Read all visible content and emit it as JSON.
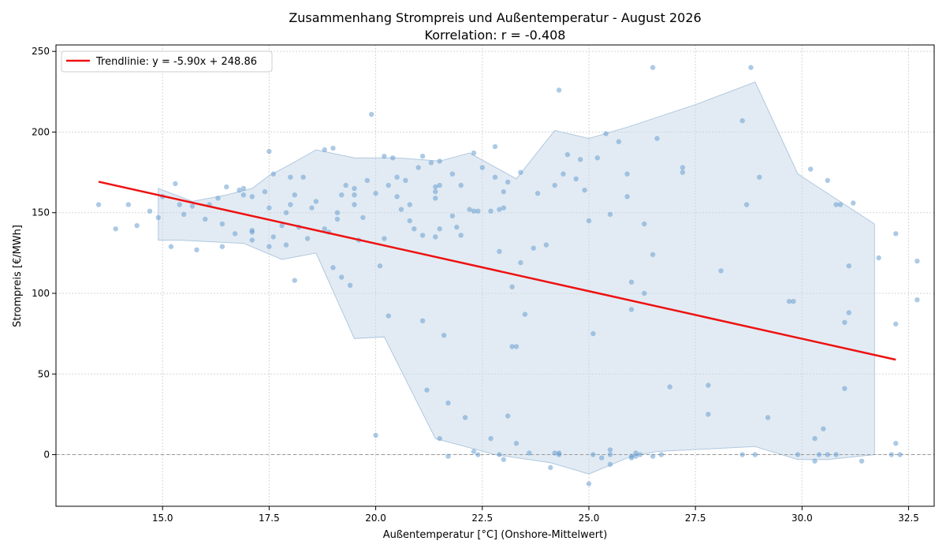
{
  "chart_data": {
    "type": "scatter",
    "title": "Zusammenhang Strompreis und Außentemperatur - August 2026",
    "subtitle": "Korrelation: r = -0.408",
    "xlabel": "Außentemperatur [°C] (Onshore-Mittelwert)",
    "ylabel": "Strompreis [€/MWh]",
    "xlim": [
      12.5,
      33.1
    ],
    "ylim": [
      -32,
      254
    ],
    "xticks": [
      15.0,
      17.5,
      20.0,
      22.5,
      25.0,
      27.5,
      30.0,
      32.5
    ],
    "yticks": [
      0,
      50,
      100,
      150,
      200,
      250
    ],
    "xtick_labels": [
      "15.0",
      "17.5",
      "20.0",
      "22.5",
      "25.0",
      "27.5",
      "30.0",
      "32.5"
    ],
    "ytick_labels": [
      "0",
      "50",
      "100",
      "150",
      "200",
      "250"
    ],
    "grid": true,
    "legend": "top-left",
    "zero_line": {
      "y": 0,
      "style": "dashed",
      "color": "#999999"
    },
    "colors": {
      "points": "#6a9fcf",
      "trend": "#ee1111",
      "band": "#c6d7e8",
      "band_edge": "#b0c8e0"
    },
    "trend": {
      "name": "Trendlinie: y = -5.90x + 248.86",
      "slope": -5.9,
      "intercept": 248.86,
      "x_range": [
        13.5,
        32.2
      ]
    },
    "band": {
      "upper": [
        [
          14.9,
          165
        ],
        [
          15.7,
          157
        ],
        [
          16.5,
          161
        ],
        [
          17.1,
          165
        ],
        [
          17.5,
          173
        ],
        [
          18.0,
          180
        ],
        [
          18.6,
          189
        ],
        [
          19.5,
          184
        ],
        [
          20.5,
          184
        ],
        [
          21.5,
          182
        ],
        [
          22.2,
          187
        ],
        [
          23.3,
          171
        ],
        [
          24.2,
          201
        ],
        [
          25.0,
          196
        ],
        [
          25.9,
          203
        ],
        [
          27.5,
          217
        ],
        [
          28.9,
          231
        ],
        [
          29.9,
          174
        ],
        [
          31.7,
          143
        ]
      ],
      "lower": [
        [
          31.7,
          0
        ],
        [
          30.6,
          -3
        ],
        [
          29.9,
          -3
        ],
        [
          28.9,
          5
        ],
        [
          26.6,
          2
        ],
        [
          26.0,
          -1
        ],
        [
          25.0,
          -12
        ],
        [
          24.1,
          -5
        ],
        [
          22.8,
          0
        ],
        [
          21.4,
          10
        ],
        [
          20.2,
          73
        ],
        [
          19.5,
          72
        ],
        [
          18.6,
          125
        ],
        [
          17.8,
          121
        ],
        [
          16.9,
          131
        ],
        [
          15.4,
          133
        ],
        [
          14.9,
          133
        ]
      ]
    },
    "points": [
      [
        13.5,
        155
      ],
      [
        13.9,
        140
      ],
      [
        14.2,
        155
      ],
      [
        14.4,
        142
      ],
      [
        14.7,
        151
      ],
      [
        14.9,
        147
      ],
      [
        15.0,
        160
      ],
      [
        15.2,
        129
      ],
      [
        15.3,
        168
      ],
      [
        15.4,
        155
      ],
      [
        15.5,
        149
      ],
      [
        15.7,
        154
      ],
      [
        15.8,
        127
      ],
      [
        16.0,
        146
      ],
      [
        16.1,
        155
      ],
      [
        16.3,
        159
      ],
      [
        16.4,
        143
      ],
      [
        16.4,
        129
      ],
      [
        16.5,
        166
      ],
      [
        16.7,
        137
      ],
      [
        16.8,
        164
      ],
      [
        16.9,
        165
      ],
      [
        16.9,
        161
      ],
      [
        17.1,
        138
      ],
      [
        17.1,
        133
      ],
      [
        17.1,
        160
      ],
      [
        17.1,
        139
      ],
      [
        17.4,
        163
      ],
      [
        17.5,
        153
      ],
      [
        17.5,
        188
      ],
      [
        17.5,
        129
      ],
      [
        17.6,
        174
      ],
      [
        17.6,
        135
      ],
      [
        17.8,
        142
      ],
      [
        17.9,
        150
      ],
      [
        17.9,
        130
      ],
      [
        18.0,
        172
      ],
      [
        18.0,
        155
      ],
      [
        18.1,
        161
      ],
      [
        18.1,
        108
      ],
      [
        18.2,
        141
      ],
      [
        18.3,
        172
      ],
      [
        18.4,
        134
      ],
      [
        18.5,
        153
      ],
      [
        18.6,
        157
      ],
      [
        18.8,
        140
      ],
      [
        18.8,
        189
      ],
      [
        18.9,
        138
      ],
      [
        19.0,
        116
      ],
      [
        19.0,
        190
      ],
      [
        19.1,
        150
      ],
      [
        19.1,
        146
      ],
      [
        19.2,
        110
      ],
      [
        19.2,
        161
      ],
      [
        19.3,
        167
      ],
      [
        19.4,
        105
      ],
      [
        19.5,
        161
      ],
      [
        19.5,
        155
      ],
      [
        19.5,
        165
      ],
      [
        19.6,
        133
      ],
      [
        19.7,
        147
      ],
      [
        19.8,
        170
      ],
      [
        19.9,
        211
      ],
      [
        20.0,
        12
      ],
      [
        20.0,
        162
      ],
      [
        20.1,
        117
      ],
      [
        20.2,
        185
      ],
      [
        20.2,
        134
      ],
      [
        20.3,
        167
      ],
      [
        20.3,
        86
      ],
      [
        20.4,
        184
      ],
      [
        20.5,
        172
      ],
      [
        20.5,
        160
      ],
      [
        20.6,
        152
      ],
      [
        20.7,
        170
      ],
      [
        20.8,
        145
      ],
      [
        20.8,
        155
      ],
      [
        20.9,
        140
      ],
      [
        21.0,
        178
      ],
      [
        21.1,
        83
      ],
      [
        21.1,
        185
      ],
      [
        21.1,
        136
      ],
      [
        21.2,
        40
      ],
      [
        21.3,
        181
      ],
      [
        21.4,
        135
      ],
      [
        21.4,
        159
      ],
      [
        21.4,
        163
      ],
      [
        21.4,
        166
      ],
      [
        21.5,
        182
      ],
      [
        21.5,
        140
      ],
      [
        21.5,
        167
      ],
      [
        21.5,
        10
      ],
      [
        21.6,
        74
      ],
      [
        21.7,
        -1
      ],
      [
        21.7,
        32
      ],
      [
        21.8,
        174
      ],
      [
        21.8,
        148
      ],
      [
        21.9,
        141
      ],
      [
        22.0,
        136
      ],
      [
        22.0,
        167
      ],
      [
        22.1,
        23
      ],
      [
        22.2,
        152
      ],
      [
        22.3,
        2
      ],
      [
        22.3,
        151
      ],
      [
        22.3,
        187
      ],
      [
        22.4,
        151
      ],
      [
        22.4,
        0
      ],
      [
        22.5,
        178
      ],
      [
        22.7,
        10
      ],
      [
        22.7,
        151
      ],
      [
        22.8,
        172
      ],
      [
        22.8,
        191
      ],
      [
        22.9,
        152
      ],
      [
        22.9,
        126
      ],
      [
        22.9,
        0
      ],
      [
        23.0,
        163
      ],
      [
        23.0,
        153
      ],
      [
        23.0,
        -3
      ],
      [
        23.1,
        24
      ],
      [
        23.1,
        169
      ],
      [
        23.2,
        104
      ],
      [
        23.2,
        67
      ],
      [
        23.3,
        7
      ],
      [
        23.3,
        67
      ],
      [
        23.4,
        175
      ],
      [
        23.4,
        119
      ],
      [
        23.5,
        87
      ],
      [
        23.6,
        1
      ],
      [
        23.7,
        128
      ],
      [
        23.8,
        162
      ],
      [
        24.0,
        130
      ],
      [
        24.1,
        -8
      ],
      [
        24.2,
        167
      ],
      [
        24.2,
        1
      ],
      [
        24.3,
        1
      ],
      [
        24.3,
        0
      ],
      [
        24.3,
        226
      ],
      [
        24.4,
        174
      ],
      [
        24.5,
        186
      ],
      [
        24.7,
        171
      ],
      [
        24.8,
        183
      ],
      [
        24.9,
        164
      ],
      [
        25.0,
        145
      ],
      [
        25.0,
        -18
      ],
      [
        25.1,
        75
      ],
      [
        25.1,
        0
      ],
      [
        25.2,
        184
      ],
      [
        25.3,
        -2
      ],
      [
        25.4,
        199
      ],
      [
        25.5,
        0
      ],
      [
        25.5,
        3
      ],
      [
        25.5,
        -6
      ],
      [
        25.5,
        149
      ],
      [
        25.7,
        194
      ],
      [
        25.9,
        174
      ],
      [
        25.9,
        160
      ],
      [
        26.0,
        -1
      ],
      [
        26.0,
        -2
      ],
      [
        26.0,
        90
      ],
      [
        26.0,
        107
      ],
      [
        26.1,
        1
      ],
      [
        26.1,
        -1
      ],
      [
        26.2,
        0
      ],
      [
        26.3,
        143
      ],
      [
        26.3,
        100
      ],
      [
        26.5,
        -1
      ],
      [
        26.5,
        240
      ],
      [
        26.5,
        124
      ],
      [
        26.6,
        196
      ],
      [
        26.7,
        0
      ],
      [
        26.9,
        42
      ],
      [
        27.2,
        175
      ],
      [
        27.2,
        178
      ],
      [
        27.8,
        43
      ],
      [
        27.8,
        25
      ],
      [
        28.1,
        114
      ],
      [
        28.6,
        0
      ],
      [
        28.6,
        207
      ],
      [
        28.7,
        155
      ],
      [
        28.8,
        240
      ],
      [
        28.9,
        0
      ],
      [
        29.0,
        172
      ],
      [
        29.2,
        23
      ],
      [
        29.7,
        95
      ],
      [
        29.8,
        95
      ],
      [
        29.9,
        0
      ],
      [
        30.2,
        177
      ],
      [
        30.3,
        10
      ],
      [
        30.3,
        -4
      ],
      [
        30.4,
        0
      ],
      [
        30.5,
        16
      ],
      [
        30.6,
        170
      ],
      [
        30.6,
        0
      ],
      [
        30.8,
        0
      ],
      [
        30.8,
        155
      ],
      [
        30.9,
        155
      ],
      [
        31.0,
        41
      ],
      [
        31.0,
        82
      ],
      [
        31.1,
        117
      ],
      [
        31.1,
        88
      ],
      [
        31.2,
        156
      ],
      [
        31.4,
        -4
      ],
      [
        31.8,
        122
      ],
      [
        32.1,
        0
      ],
      [
        32.2,
        137
      ],
      [
        32.2,
        81
      ],
      [
        32.2,
        7
      ],
      [
        32.3,
        0
      ],
      [
        32.7,
        96
      ],
      [
        32.7,
        120
      ]
    ]
  }
}
